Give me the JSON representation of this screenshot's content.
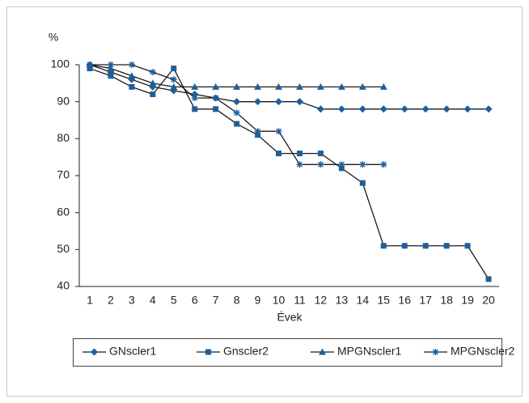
{
  "chart_data": {
    "type": "line",
    "y_unit_label": "%",
    "x_label": "Évek",
    "categories": [
      1,
      2,
      3,
      4,
      5,
      6,
      7,
      8,
      9,
      10,
      11,
      12,
      13,
      14,
      15,
      16,
      17,
      18,
      19,
      20
    ],
    "ylim": [
      40,
      100
    ],
    "yticks": [
      40,
      50,
      60,
      70,
      80,
      90,
      100
    ],
    "line_color": "#1a1a1a",
    "series": [
      {
        "name": "GNscler1",
        "color": "#1f5f99",
        "marker": "diamond",
        "values": [
          100,
          98,
          96,
          94,
          93,
          92,
          91,
          90,
          90,
          90,
          90,
          88,
          88,
          88,
          88,
          88,
          88,
          88,
          88,
          88
        ]
      },
      {
        "name": "Gnscler2",
        "color": "#1f5f99",
        "marker": "square",
        "values": [
          99,
          97,
          94,
          92,
          99,
          88,
          88,
          84,
          81,
          76,
          76,
          76,
          72,
          68,
          51,
          51,
          51,
          51,
          51,
          42
        ]
      },
      {
        "name": "MPGNscler1",
        "color": "#1f5f99",
        "marker": "triangle",
        "values": [
          100,
          99,
          97,
          95,
          94,
          94,
          94,
          94,
          94,
          94,
          94,
          94,
          94,
          94,
          94,
          null,
          null,
          null,
          null,
          null
        ]
      },
      {
        "name": "MPGNscler2",
        "color": "#1f5f99",
        "marker": "star",
        "values": [
          100,
          100,
          100,
          98,
          96,
          91,
          91,
          87,
          82,
          82,
          73,
          73,
          73,
          73,
          73,
          null,
          null,
          null,
          null,
          null
        ]
      }
    ]
  }
}
